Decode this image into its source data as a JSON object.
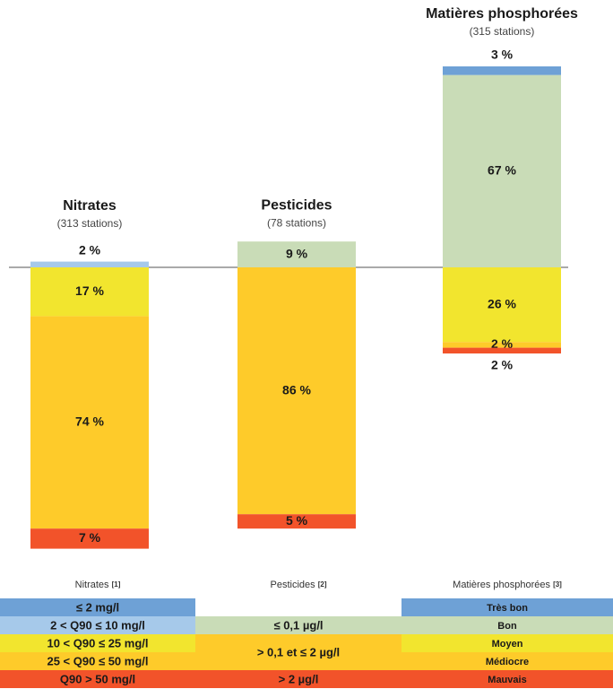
{
  "chart_data": {
    "type": "diverging_stacked_bar",
    "categories": [
      "Nitrates",
      "Pesticides",
      "Matières phosphorées"
    ],
    "subtitles": [
      "(313 stations)",
      "(78 stations)",
      "(315 stations)"
    ],
    "series": [
      {
        "name": "Très bon",
        "colors": [
          "#6ea1d6",
          null,
          "#6ea1d6"
        ],
        "values": [
          null,
          null,
          3
        ],
        "value_labels": [
          null,
          null,
          "3 %"
        ]
      },
      {
        "name": "Bon",
        "colors": [
          "#a6c9ea",
          "#c9dcb7",
          "#c9dcb7"
        ],
        "values": [
          2,
          9,
          67
        ],
        "value_labels": [
          "2 %",
          "9 %",
          "67 %"
        ]
      },
      {
        "name": "Moyen",
        "colors": [
          "#f2e52e",
          "#fecb2a",
          "#f2e52e"
        ],
        "values": [
          17,
          null,
          26
        ],
        "value_labels": [
          "17 %",
          null,
          "26 %"
        ]
      },
      {
        "name": "Médiocre",
        "colors": [
          "#fecb2a",
          "#fecb2a",
          "#fecb2a"
        ],
        "values": [
          74,
          86,
          2
        ],
        "value_labels": [
          "74 %",
          "86 %",
          "2 %"
        ]
      },
      {
        "name": "Mauvais",
        "colors": [
          "#f2532a",
          "#f2532a",
          "#f2532a"
        ],
        "values": [
          7,
          5,
          2
        ],
        "value_labels": [
          "7 %",
          "5 %",
          "2 %"
        ]
      }
    ],
    "legend": {
      "columns": [
        {
          "title": "Nitrates",
          "note": "[1]",
          "thresholds": [
            "≤ 2 mg/l",
            "2 < Q90 ≤ 10 mg/l",
            "10 < Q90 ≤ 25   mg/l",
            "25 < Q90 ≤ 50 mg/l",
            "Q90 > 50 mg/l"
          ]
        },
        {
          "title": "Pesticides",
          "note": "[2]",
          "thresholds": [
            null,
            "≤ 0,1 µg/l",
            "> 0,1 et ≤ 2 µg/l",
            null,
            "> 2 µg/l"
          ]
        },
        {
          "title": "Matières phosphorées",
          "note": "[3]"
        }
      ]
    }
  }
}
